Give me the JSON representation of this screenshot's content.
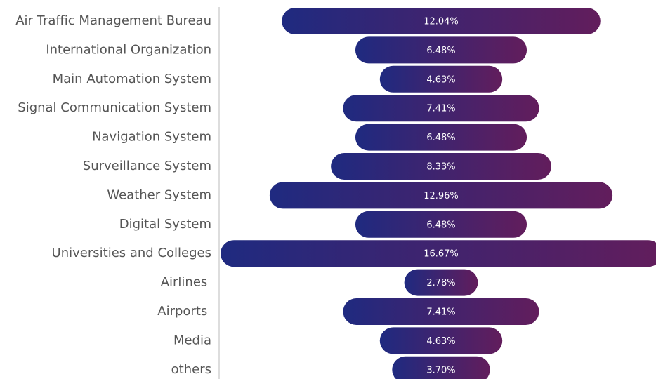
{
  "chart_data": {
    "type": "bar",
    "orientation": "horizontal",
    "centered": true,
    "categories": [
      "Air Traffic Management Bureau",
      "International Organization",
      "Main Automation System",
      "Signal Communication System",
      "Navigation System",
      "Surveillance System",
      "Weather System",
      "Digital System",
      "Universities and Colleges",
      "Airlines ",
      "Airports ",
      "Media",
      "others"
    ],
    "values": [
      12.04,
      6.48,
      4.63,
      7.41,
      6.48,
      8.33,
      12.96,
      6.48,
      16.67,
      2.78,
      7.41,
      4.63,
      3.7
    ],
    "value_labels": [
      "12.04%",
      "6.48%",
      "4.63%",
      "7.41%",
      "6.48%",
      "8.33%",
      "12.96%",
      "6.48%",
      "16.67%",
      "2.78%",
      "7.41%",
      "4.63%",
      "3.70%"
    ],
    "color": [
      "#1f2a80",
      "#621d5c"
    ]
  }
}
